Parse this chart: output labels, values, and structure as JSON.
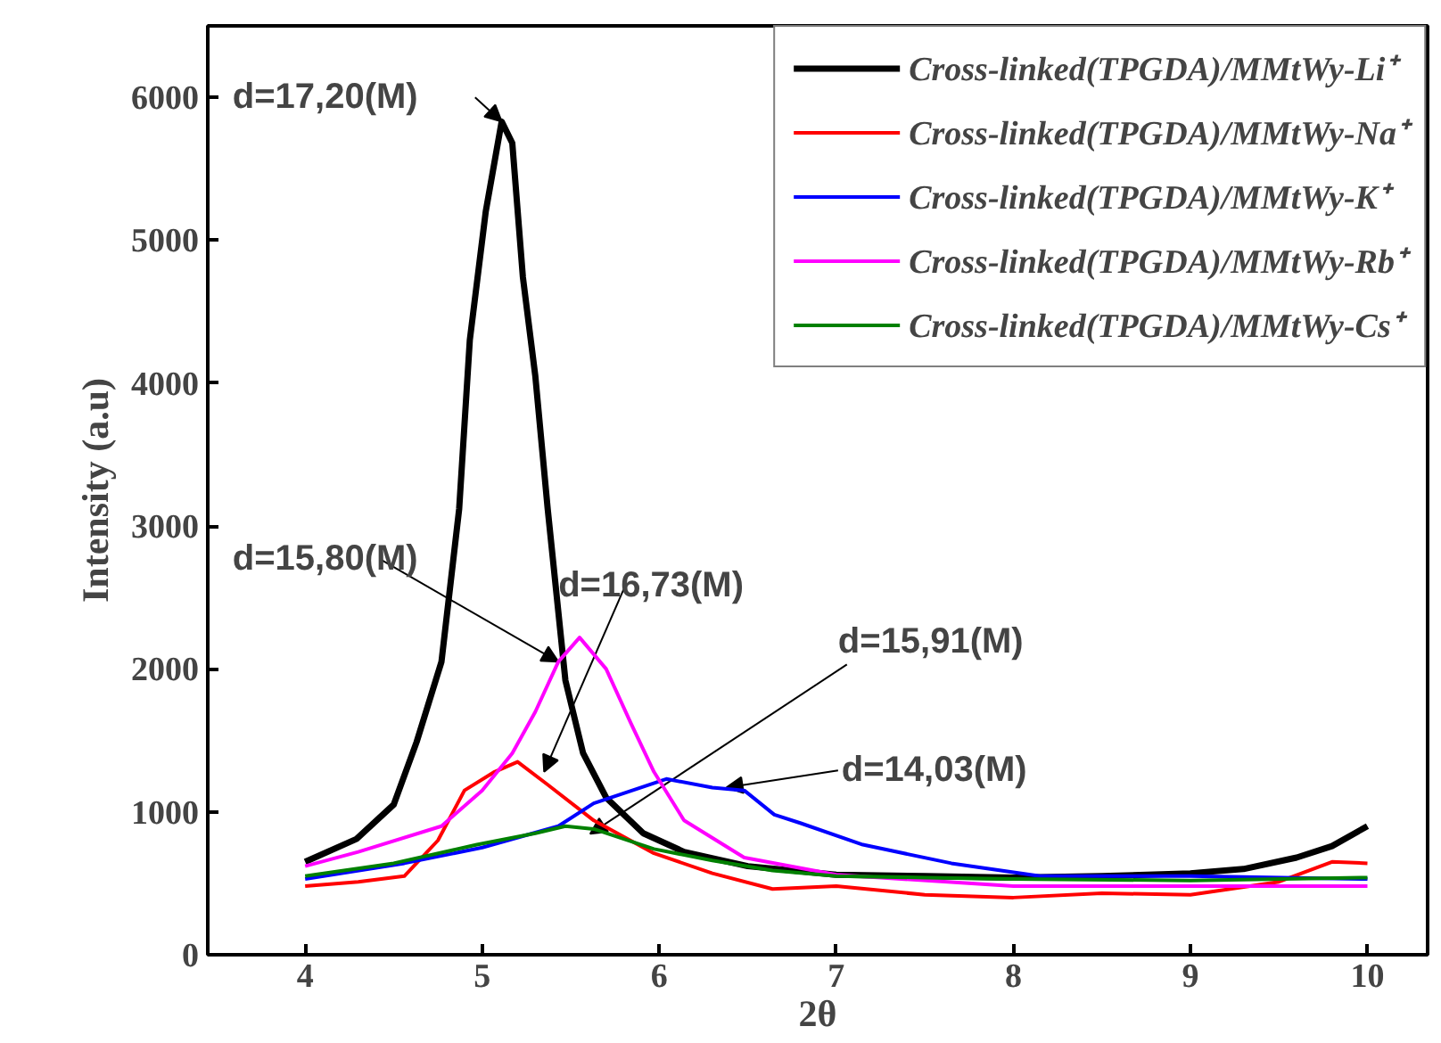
{
  "chart_data": {
    "type": "line",
    "xlabel": "2θ",
    "ylabel": "Intensity (a.u)",
    "xlim": [
      3.45,
      10.34
    ],
    "ylim": [
      0,
      6500
    ],
    "xticks": [
      4,
      5,
      6,
      7,
      8,
      9,
      10
    ],
    "yticks": [
      0,
      1000,
      2000,
      3000,
      4000,
      5000,
      6000
    ],
    "grid": false,
    "legend": "top right",
    "marker": "none",
    "line_style": "solid",
    "series": [
      {
        "name": "Cross-linked(TPGDA)/MMtWy-Li⁺",
        "color": "#000000",
        "x": [
          4.0,
          4.29,
          4.5,
          4.63,
          4.77,
          4.87,
          4.93,
          5.02,
          5.11,
          5.17,
          5.23,
          5.3,
          5.37,
          5.47,
          5.57,
          5.7,
          5.91,
          6.14,
          6.5,
          7.0,
          7.5,
          8.0,
          8.5,
          9.0,
          9.3,
          9.6,
          9.8,
          10.0
        ],
        "values": [
          650,
          810,
          1050,
          1490,
          2050,
          3120,
          4300,
          5200,
          5830,
          5680,
          4740,
          4050,
          3120,
          1920,
          1410,
          1100,
          850,
          720,
          620,
          560,
          550,
          540,
          550,
          570,
          600,
          680,
          760,
          900
        ]
      },
      {
        "name": "Cross-linked(TPGDA)/MMtWy-Na⁺",
        "color": "#ff0000",
        "x": [
          4.0,
          4.3,
          4.56,
          4.75,
          4.9,
          5.07,
          5.2,
          5.37,
          5.63,
          5.97,
          6.3,
          6.64,
          7.0,
          7.5,
          8.0,
          8.5,
          9.0,
          9.5,
          9.8,
          10.0
        ],
        "values": [
          480,
          510,
          550,
          800,
          1150,
          1280,
          1350,
          1190,
          940,
          710,
          570,
          460,
          480,
          420,
          400,
          430,
          420,
          510,
          650,
          640
        ]
      },
      {
        "name": "Cross-linked(TPGDA)/MMtWy-K⁺",
        "color": "#0000ff",
        "x": [
          4.0,
          4.56,
          5.0,
          5.43,
          5.63,
          6.04,
          6.3,
          6.48,
          6.65,
          6.8,
          7.15,
          7.65,
          8.15,
          9.0,
          10.0
        ],
        "values": [
          530,
          640,
          750,
          900,
          1060,
          1230,
          1170,
          1150,
          980,
          920,
          770,
          640,
          550,
          550,
          530
        ]
      },
      {
        "name": "Cross-linked(TPGDA)/MMtWy-Rb⁺",
        "color": "#ff00ff",
        "x": [
          4.0,
          4.3,
          4.77,
          5.0,
          5.17,
          5.3,
          5.43,
          5.55,
          5.7,
          5.84,
          5.97,
          6.14,
          6.48,
          7.0,
          8.0,
          9.0,
          10.0
        ],
        "values": [
          620,
          720,
          900,
          1150,
          1410,
          1700,
          2050,
          2220,
          2000,
          1620,
          1280,
          940,
          680,
          560,
          480,
          480,
          480
        ]
      },
      {
        "name": "Cross-linked(TPGDA)/MMtWy-Cs⁺",
        "color": "#008000",
        "x": [
          4.0,
          4.5,
          4.97,
          5.3,
          5.47,
          5.63,
          5.97,
          6.3,
          6.64,
          7.0,
          7.5,
          8.0,
          9.0,
          10.0
        ],
        "values": [
          550,
          640,
          770,
          850,
          900,
          880,
          740,
          660,
          590,
          550,
          540,
          530,
          520,
          540
        ]
      }
    ],
    "annotations": [
      {
        "text": "d=17,20(M)",
        "x": 5.11,
        "y": 5830
      },
      {
        "text": "d=15,80(M)",
        "x": 5.43,
        "y": 2050
      },
      {
        "text": "d=16,73(M)",
        "x": 5.35,
        "y": 1280
      },
      {
        "text": "d=15,91(M)",
        "x": 5.61,
        "y": 846
      },
      {
        "text": "d=14,03(M)",
        "x": 6.38,
        "y": 1170
      }
    ]
  }
}
